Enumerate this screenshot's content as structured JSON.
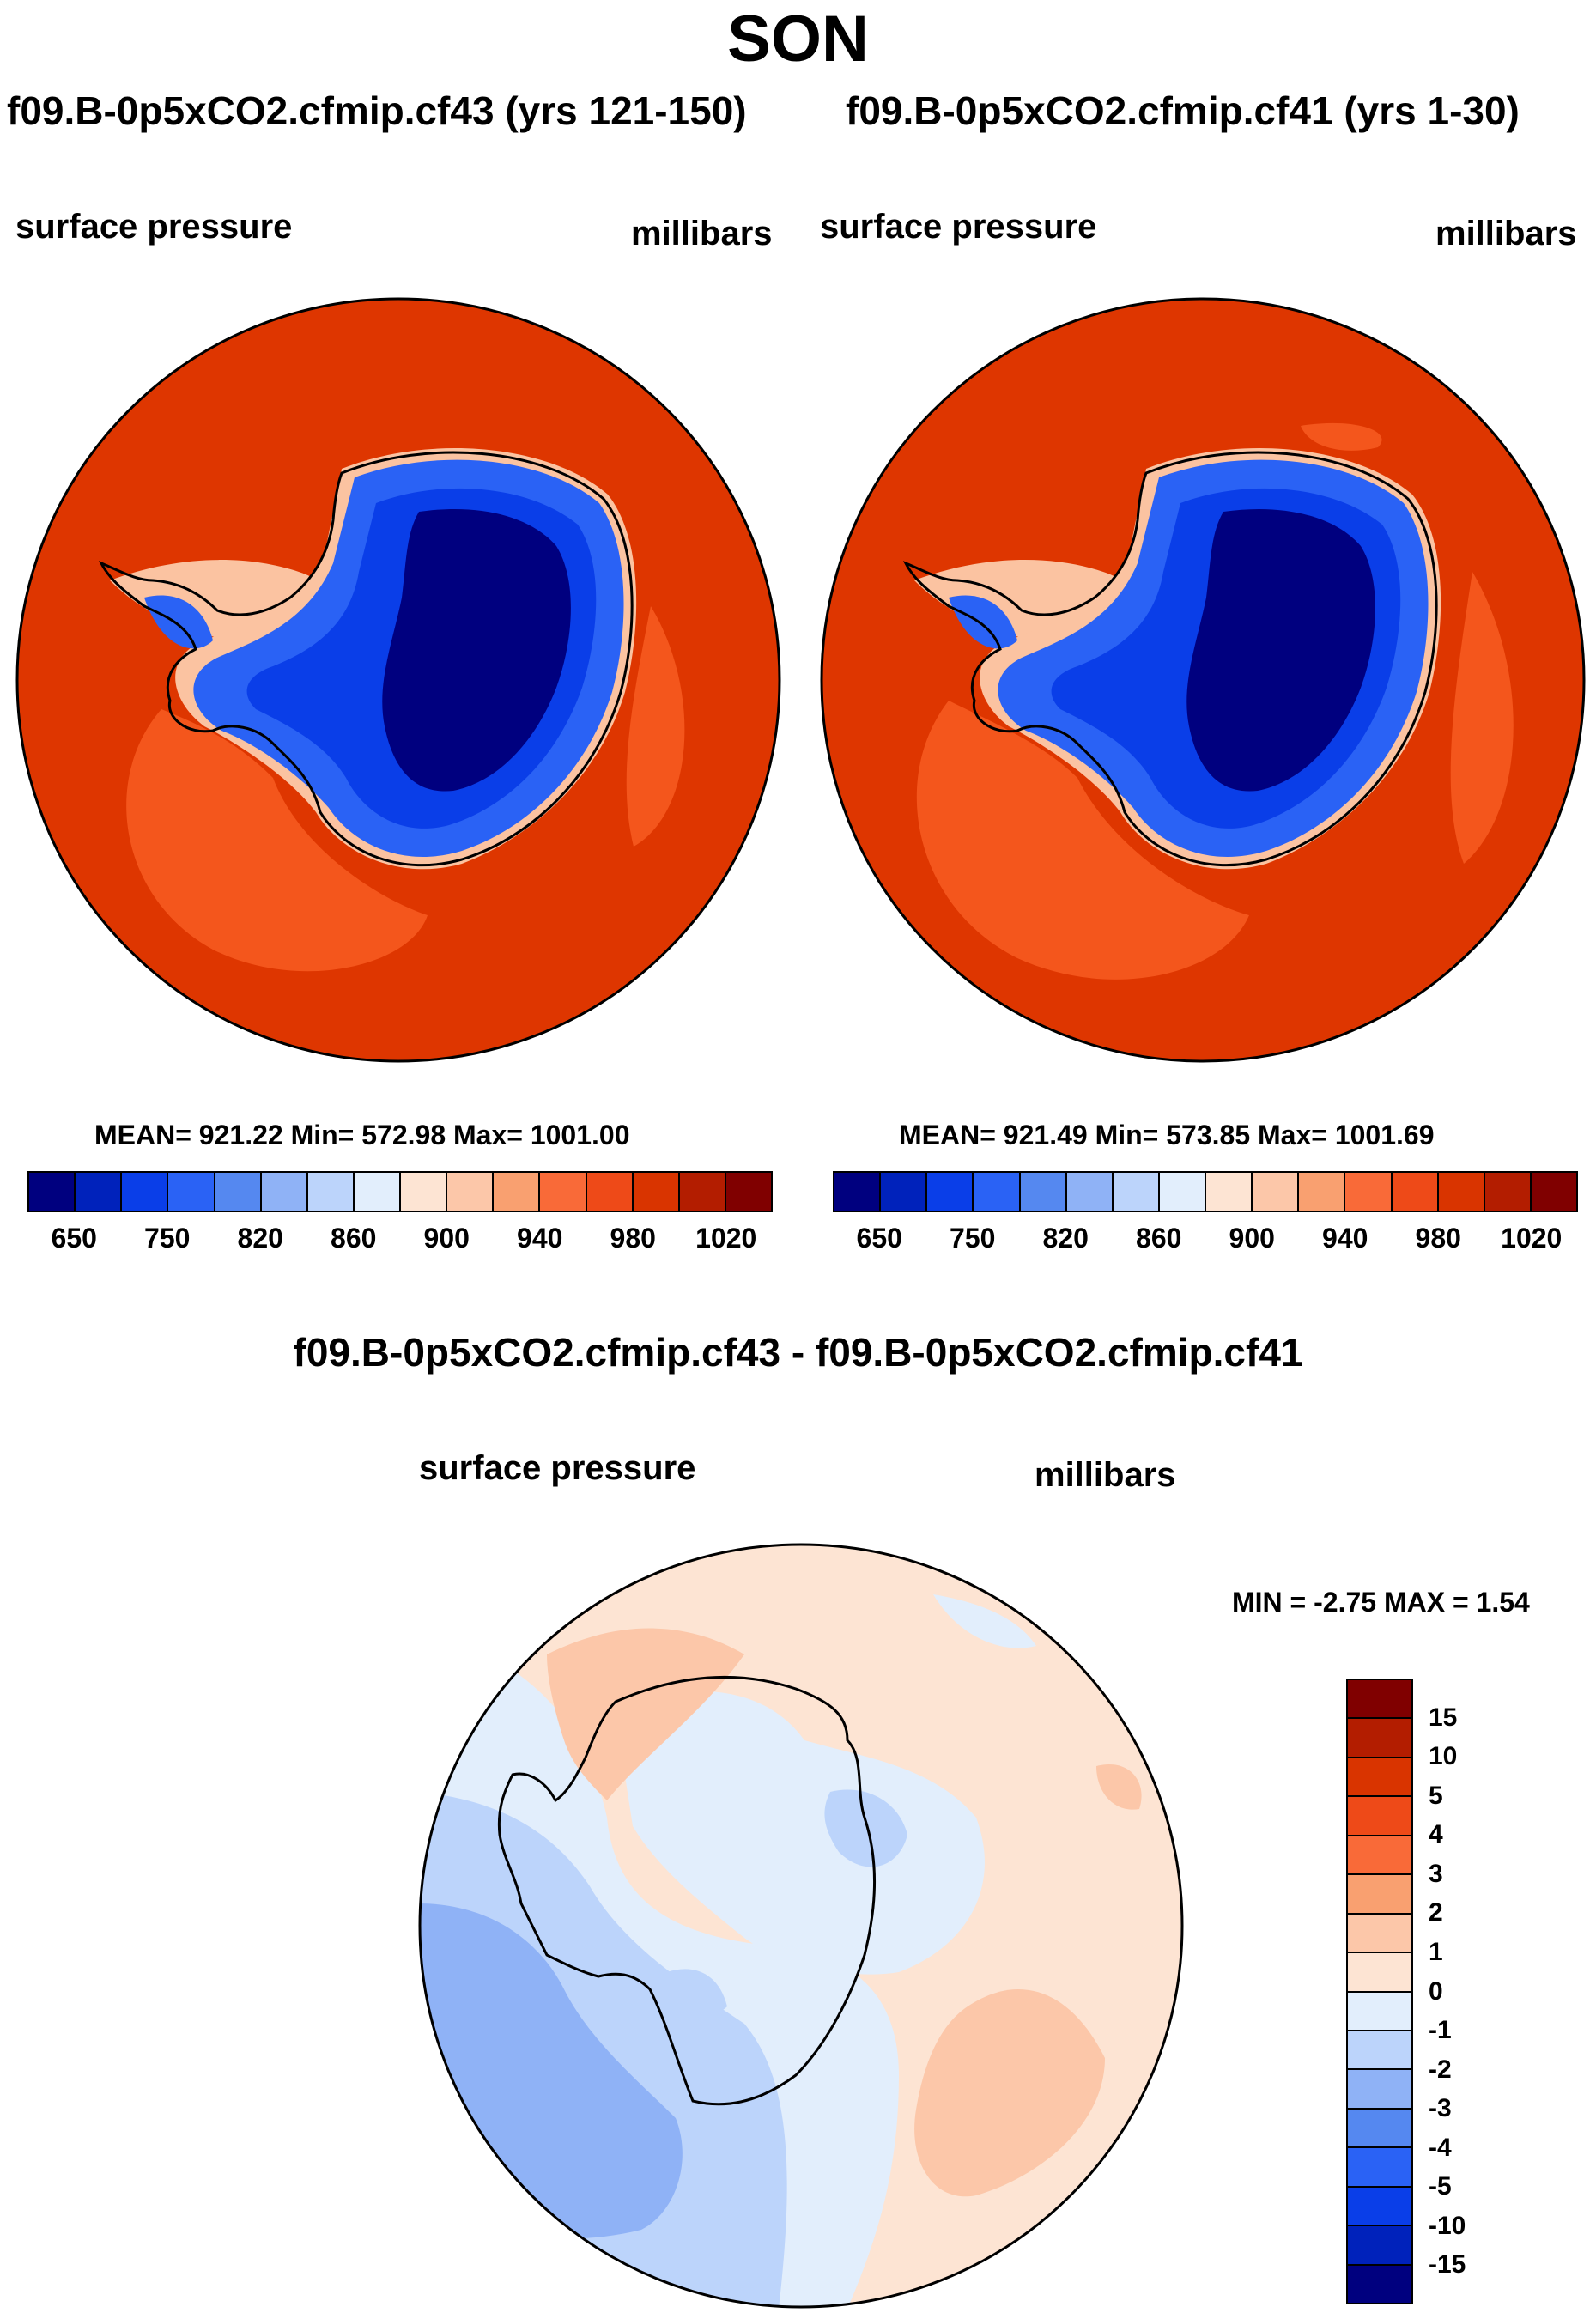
{
  "title": "SON",
  "panels": [
    {
      "case_title": "f09.B-0p5xCO2.cfmip.cf43 (yrs 121-150)",
      "variable": "surface pressure",
      "units": "millibars",
      "stats": "MEAN= 921.22  Min= 572.98  Max= 1001.00"
    },
    {
      "case_title": "f09.B-0p5xCO2.cfmip.cf41 (yrs 1-30)",
      "variable": "surface pressure",
      "units": "millibars",
      "stats": "MEAN= 921.49  Min= 573.85  Max= 1001.69"
    }
  ],
  "diff_panel": {
    "case_title": "f09.B-0p5xCO2.cfmip.cf43 - f09.B-0p5xCO2.cfmip.cf41",
    "variable": "surface pressure",
    "units": "millibars",
    "stats": "MIN =  -2.75 MAX =   1.54"
  },
  "colorbar_main": {
    "labels": [
      "650",
      "750",
      "820",
      "860",
      "900",
      "940",
      "980",
      "1020"
    ],
    "colors": [
      "#00007f",
      "#0022bb",
      "#0a3ee8",
      "#2a62f5",
      "#5588f0",
      "#8fb2f6",
      "#bcd4fb",
      "#e2eefc",
      "#fde4d3",
      "#fcc7a9",
      "#f9a070",
      "#f96a38",
      "#ee4a18",
      "#d93400",
      "#b31d00",
      "#800000"
    ]
  },
  "colorbar_diff": {
    "labels": [
      "15",
      "10",
      "5",
      "4",
      "3",
      "2",
      "1",
      "0",
      "-1",
      "-2",
      "-3",
      "-4",
      "-5",
      "-10",
      "-15"
    ],
    "colors": [
      "#800000",
      "#b31d00",
      "#d93400",
      "#ee4a18",
      "#f96a38",
      "#f9a070",
      "#fcc7a9",
      "#fde4d3",
      "#e2eefc",
      "#bcd4fb",
      "#8fb2f6",
      "#5588f0",
      "#2a62f5",
      "#0a3ee8",
      "#0022bb",
      "#00007f"
    ]
  },
  "field_colors": {
    "ocean_main": "#de3600",
    "ocean_high": "#f4561c",
    "coast_pale": "#fbc3a1",
    "ice_light": "#2a62f5",
    "ice_mid": "#0a3ee8",
    "ice_deep": "#00007f",
    "diff_pos1": "#fde4d3",
    "diff_pos2": "#fcc7a9",
    "diff_neg1": "#e2eefc",
    "diff_neg2": "#bcd4fb",
    "diff_neg3": "#8fb2f6"
  }
}
